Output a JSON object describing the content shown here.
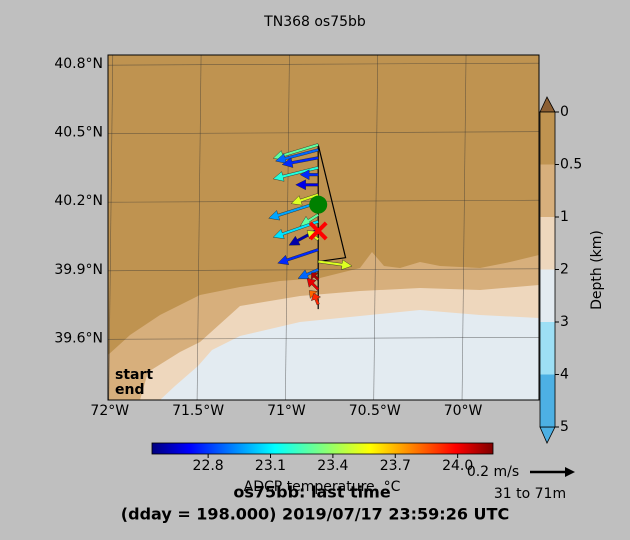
{
  "chart_data": {
    "type": "quiver",
    "title": "TN368 os75bb",
    "xlim": [
      -72.01,
      -69.57
    ],
    "ylim": [
      39.33,
      40.84
    ],
    "xticks": [
      {
        "value": -72,
        "label": "72°W"
      },
      {
        "value": -71.5,
        "label": "71.5°W"
      },
      {
        "value": -71,
        "label": "71°W"
      },
      {
        "value": -70.5,
        "label": "70.5°W"
      },
      {
        "value": -70,
        "label": "70°W"
      }
    ],
    "yticks": [
      {
        "value": 40.8,
        "label": "40.8°N"
      },
      {
        "value": 40.5,
        "label": "40.5°N"
      },
      {
        "value": 40.2,
        "label": "40.2°N"
      },
      {
        "value": 39.9,
        "label": "39.9°N"
      },
      {
        "value": 39.6,
        "label": "39.6°N"
      }
    ],
    "grid": true,
    "depth_colorbar": {
      "label": "Depth (km)",
      "ticks": [
        0,
        0.5,
        1,
        2,
        3,
        4,
        5
      ],
      "colors": [
        "#bf9350",
        "#d7af7c",
        "#eed7bd",
        "#e3ebf1",
        "#9ddff5",
        "#4db0e4"
      ]
    },
    "temp_colorbar": {
      "label": "ADCP temperature, °C",
      "clim": [
        22.53,
        24.17
      ],
      "ticks": [
        22.8,
        23.1,
        23.4,
        23.7,
        {
          "value": 24.0,
          "label": "24.0"
        }
      ]
    },
    "track": {
      "lon": [
        -70.82,
        -70.82,
        -70.665,
        -70.82
      ],
      "lat": [
        39.728,
        40.447,
        39.953,
        39.936
      ]
    },
    "start": {
      "label": "start",
      "lon": -70.82,
      "lat": 40.185,
      "color": "#008000"
    },
    "end": {
      "label": "end",
      "lon": -70.82,
      "lat": 40.07,
      "color": "#ff0000"
    },
    "vectors": {
      "lon": -70.82,
      "lat": [
        40.447,
        40.425,
        40.39,
        40.347,
        40.316,
        40.272,
        40.229,
        40.194,
        40.141,
        40.111,
        40.076,
        40.032,
        39.988,
        39.936,
        39.901,
        39.857,
        39.814,
        39.77,
        39.748
      ],
      "u": [
        -0.2,
        -0.19,
        -0.16,
        -0.2,
        -0.08,
        -0.1,
        -0.12,
        -0.22,
        -0.08,
        -0.2,
        -0.13,
        -0.05,
        -0.18,
        0.15,
        -0.09,
        -0.03,
        -0.05,
        -0.04,
        -0.02
      ],
      "v": [
        -0.06,
        -0.05,
        -0.03,
        -0.05,
        0.0,
        0.0,
        -0.04,
        -0.07,
        -0.05,
        -0.07,
        -0.07,
        0.04,
        -0.06,
        -0.02,
        -0.04,
        0.03,
        0.05,
        0.04,
        0.05
      ],
      "temp": [
        23.3,
        22.9,
        22.8,
        23.2,
        22.8,
        22.7,
        23.5,
        23.0,
        23.3,
        23.1,
        22.6,
        23.5,
        22.8,
        23.5,
        22.9,
        24.1,
        24.0,
        23.8,
        23.9
      ]
    },
    "scale_arrow": {
      "value": 0.2,
      "label": "0.2 m/s"
    },
    "depth_range": "31 to 71m",
    "footer": [
      "os75bb: last time",
      "(dday = 198.000) 2019/07/17 23:59:26 UTC"
    ]
  }
}
